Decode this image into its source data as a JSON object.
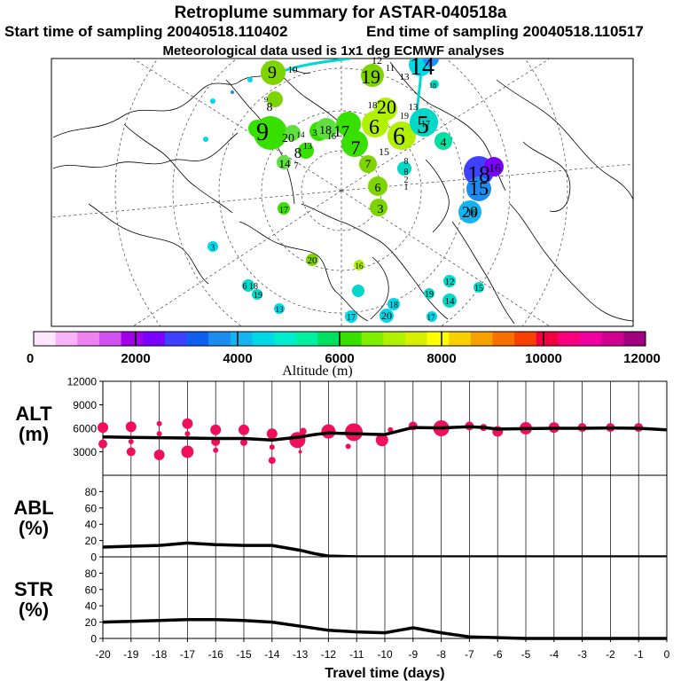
{
  "header": {
    "title": "Retroplume summary for ASTAR-040518a",
    "start_label": "Start time of sampling 20040518.110402",
    "end_label": "End time of sampling 20040518.110517",
    "met_label": "Meteorological data used is 1x1 deg ECMWF analyses"
  },
  "colorbar": {
    "label": "Altitude (m)",
    "tick_labels": [
      "0",
      "2000",
      "4000",
      "6000",
      "8000",
      "10000",
      "12000"
    ],
    "tick_values": [
      0,
      2000,
      4000,
      6000,
      8000,
      10000,
      12000
    ],
    "range": [
      0,
      12000
    ],
    "colors": [
      "#ffe8ff",
      "#f8b4f8",
      "#ee82ee",
      "#d050f0",
      "#a000e8",
      "#7a00ff",
      "#4040ff",
      "#1060f0",
      "#1c8cf0",
      "#14b4f0",
      "#00d8e8",
      "#00eccc",
      "#00f0a0",
      "#00e060",
      "#38e000",
      "#80f000",
      "#b0f000",
      "#d8f000",
      "#ffff00",
      "#f8d000",
      "#f8a000",
      "#f87000",
      "#f84000",
      "#f00040",
      "#f80080",
      "#f000a0",
      "#d00090",
      "#a00080"
    ]
  },
  "map": {
    "labels": [
      {
        "text": "9",
        "color": "#7ed400"
      },
      {
        "text": "10",
        "color": "#ffffff"
      },
      {
        "text": "12",
        "color": "#ffffff"
      },
      {
        "text": "11",
        "color": "#1e90ff"
      },
      {
        "text": "14",
        "color": "#00d8e8"
      },
      {
        "text": "19",
        "color": "#7ed400"
      },
      {
        "text": "13",
        "color": "#ffffff"
      },
      {
        "text": "9",
        "color": "#b0f000"
      },
      {
        "text": "8",
        "color": "#7ed400"
      },
      {
        "text": "9",
        "color": "#7ed400"
      },
      {
        "text": "20",
        "color": "#b0f000"
      },
      {
        "text": "14",
        "color": "#ffffff"
      },
      {
        "text": "13",
        "color": "#00d8e8"
      },
      {
        "text": "18",
        "color": "#60e040"
      },
      {
        "text": "8",
        "color": "#38e000"
      },
      {
        "text": "7",
        "color": "#38e000"
      },
      {
        "text": "3",
        "color": "#7ed400"
      },
      {
        "text": "7",
        "color": "#38e000"
      },
      {
        "text": "6",
        "color": "#38e000"
      },
      {
        "text": "6",
        "color": "#38e000"
      },
      {
        "text": "5",
        "color": "#38e000"
      },
      {
        "text": "4",
        "color": "#38e000"
      },
      {
        "text": "17",
        "color": "#b0f000"
      },
      {
        "text": "16",
        "color": "#b0f000"
      },
      {
        "text": "15",
        "color": "#00d8c8"
      },
      {
        "text": "14",
        "color": "#00e0a0"
      },
      {
        "text": "7",
        "color": "#7ed400"
      },
      {
        "text": "6",
        "color": "#7ed400"
      },
      {
        "text": "3",
        "color": "#7ed400"
      },
      {
        "text": "8",
        "color": "#60e040"
      },
      {
        "text": "8",
        "color": "#b0f000"
      },
      {
        "text": "2",
        "color": "#7ed400"
      },
      {
        "text": "1",
        "color": "#7ed400"
      },
      {
        "text": "18",
        "color": "#ffffff"
      },
      {
        "text": "16",
        "color": "#ffffff"
      },
      {
        "text": "15",
        "color": "#ffffff"
      },
      {
        "text": "20",
        "color": "#ffffff"
      },
      {
        "text": "17",
        "color": "#4040ff"
      },
      {
        "text": "3",
        "color": "#7a00ff"
      },
      {
        "text": "20",
        "color": "#1c8cf0"
      },
      {
        "text": "16",
        "color": "#14b4f0"
      },
      {
        "text": "6",
        "color": "#38e000"
      },
      {
        "text": "18",
        "color": "#00d8c8"
      },
      {
        "text": "19",
        "color": "#7ed400"
      },
      {
        "text": "19",
        "color": "#b0f000"
      },
      {
        "text": "17",
        "color": "#00d8c8"
      },
      {
        "text": "18",
        "color": "#00d8c8"
      },
      {
        "text": "20",
        "color": "#00d8c8"
      },
      {
        "text": "17",
        "color": "#00d8c8"
      },
      {
        "text": "13",
        "color": "#00d8e8"
      },
      {
        "text": "12",
        "color": "#00d8e8"
      },
      {
        "text": "14",
        "color": "#00d8e8"
      },
      {
        "text": "15",
        "color": "#00d8e8"
      },
      {
        "text": "18",
        "color": "#00d8e8"
      },
      {
        "text": "13",
        "color": "#00d8e8"
      },
      {
        "text": "17",
        "color": "#00d8e8"
      },
      {
        "text": "18",
        "color": "#00d8c8"
      },
      {
        "text": "20",
        "color": "#00d8c8"
      },
      {
        "text": "19",
        "color": "#00d8c8"
      },
      {
        "text": "16",
        "color": "#00d8e8"
      }
    ]
  },
  "chart_data": [
    {
      "type": "scatter",
      "name": "ALT",
      "ylabel": "ALT\n(m)",
      "ylabel_lines": [
        "ALT",
        "(m)"
      ],
      "ylim": [
        0,
        12000
      ],
      "yticks": [
        3000,
        6000,
        9000,
        12000
      ],
      "ytick_labels": [
        "3000",
        "6000",
        "9000",
        "12000"
      ],
      "xlim": [
        -20,
        0
      ],
      "line": {
        "x": [
          -20,
          -19,
          -18,
          -17,
          -16,
          -15,
          -14,
          -13.5,
          -13,
          -12.5,
          -12,
          -11,
          -10,
          -9,
          -8,
          -7,
          -6.5,
          -6,
          -5,
          -4,
          -3,
          -2,
          -1,
          0
        ],
        "y": [
          4900,
          4850,
          4800,
          4750,
          4700,
          4700,
          4500,
          4700,
          4900,
          5200,
          5400,
          5300,
          5200,
          6100,
          6050,
          6200,
          6100,
          5900,
          5950,
          6000,
          6000,
          6050,
          6000,
          5800
        ]
      },
      "dots": [
        {
          "x": -20,
          "y": 6100,
          "r": 6
        },
        {
          "x": -20,
          "y": 4000,
          "r": 5
        },
        {
          "x": -19,
          "y": 6200,
          "r": 6
        },
        {
          "x": -19,
          "y": 4300,
          "r": 3
        },
        {
          "x": -19,
          "y": 3000,
          "r": 5
        },
        {
          "x": -18,
          "y": 6600,
          "r": 3
        },
        {
          "x": -18,
          "y": 5300,
          "r": 3
        },
        {
          "x": -18,
          "y": 2600,
          "r": 6
        },
        {
          "x": -17,
          "y": 6600,
          "r": 6
        },
        {
          "x": -17,
          "y": 5300,
          "r": 3
        },
        {
          "x": -17,
          "y": 3000,
          "r": 7
        },
        {
          "x": -16,
          "y": 5800,
          "r": 6
        },
        {
          "x": -16,
          "y": 4300,
          "r": 5
        },
        {
          "x": -16,
          "y": 3200,
          "r": 3
        },
        {
          "x": -15,
          "y": 5800,
          "r": 6
        },
        {
          "x": -15,
          "y": 4200,
          "r": 4
        },
        {
          "x": -14,
          "y": 5300,
          "r": 6
        },
        {
          "x": -14,
          "y": 3600,
          "r": 3
        },
        {
          "x": -14,
          "y": 1900,
          "r": 4
        },
        {
          "x": -13.1,
          "y": 4500,
          "r": 9
        },
        {
          "x": -12.9,
          "y": 5600,
          "r": 4
        },
        {
          "x": -13,
          "y": 3000,
          "r": 2
        },
        {
          "x": -12,
          "y": 5600,
          "r": 8
        },
        {
          "x": -11.1,
          "y": 5500,
          "r": 10
        },
        {
          "x": -11.3,
          "y": 3700,
          "r": 3
        },
        {
          "x": -10.1,
          "y": 4500,
          "r": 7
        },
        {
          "x": -9.8,
          "y": 5800,
          "r": 3
        },
        {
          "x": -9,
          "y": 6300,
          "r": 5
        },
        {
          "x": -8,
          "y": 6000,
          "r": 9
        },
        {
          "x": -7,
          "y": 6300,
          "r": 5
        },
        {
          "x": -6.5,
          "y": 6100,
          "r": 4
        },
        {
          "x": -6,
          "y": 5600,
          "r": 6
        },
        {
          "x": -5,
          "y": 6000,
          "r": 7
        },
        {
          "x": -4,
          "y": 6100,
          "r": 6
        },
        {
          "x": -3,
          "y": 6100,
          "r": 5
        },
        {
          "x": -2,
          "y": 6100,
          "r": 5
        },
        {
          "x": -1,
          "y": 6100,
          "r": 5
        }
      ]
    },
    {
      "type": "line",
      "name": "ABL",
      "ylabel_lines": [
        "ABL",
        "(%)"
      ],
      "ylim": [
        0,
        100
      ],
      "yticks": [
        0,
        20,
        40,
        60,
        80
      ],
      "ytick_labels": [
        "0",
        "20",
        "40",
        "60",
        "80"
      ],
      "xlim": [
        -20,
        0
      ],
      "x": [
        -20,
        -19,
        -18,
        -17,
        -16,
        -15,
        -14,
        -13,
        -12.5,
        -12,
        -11,
        -10,
        -9,
        -8,
        -7,
        -6,
        -5,
        -4,
        -3,
        -2,
        -1,
        0
      ],
      "y": [
        12,
        13,
        14,
        17,
        15,
        14,
        14,
        8,
        4,
        1,
        0,
        0,
        0,
        0,
        0,
        0,
        0,
        0,
        0,
        0,
        0,
        0
      ]
    },
    {
      "type": "line",
      "name": "STR",
      "ylabel_lines": [
        "STR",
        "(%)"
      ],
      "ylim": [
        0,
        100
      ],
      "yticks": [
        0,
        20,
        40,
        60,
        80
      ],
      "ytick_labels": [
        "0",
        "20",
        "40",
        "60",
        "80"
      ],
      "xlim": [
        -20,
        0
      ],
      "xlabel": "Travel time (days)",
      "xticks": [
        -20,
        -19,
        -18,
        -17,
        -16,
        -15,
        -14,
        -13,
        -12,
        -11,
        -10,
        -9,
        -8,
        -7,
        -6,
        -5,
        -4,
        -3,
        -2,
        -1,
        0
      ],
      "xtick_labels": [
        "-20",
        "-19",
        "-18",
        "-17",
        "-16",
        "-15",
        "-14",
        "-13",
        "-12",
        "-11",
        "-10",
        "-9",
        "-8",
        "-7",
        "-6",
        "-5",
        "-4",
        "-3",
        "-2",
        "-1",
        "0"
      ],
      "x": [
        -20,
        -19,
        -18,
        -17,
        -16,
        -15,
        -14,
        -13,
        -12,
        -11,
        -10,
        -9.5,
        -9,
        -8,
        -7,
        -6,
        -5,
        -4,
        -3,
        -2,
        -1,
        0
      ],
      "y": [
        20,
        21,
        22,
        23,
        23,
        22,
        20,
        15,
        10,
        8,
        7,
        10,
        13,
        7,
        2,
        1,
        0,
        0,
        0,
        0,
        0,
        0
      ]
    }
  ]
}
